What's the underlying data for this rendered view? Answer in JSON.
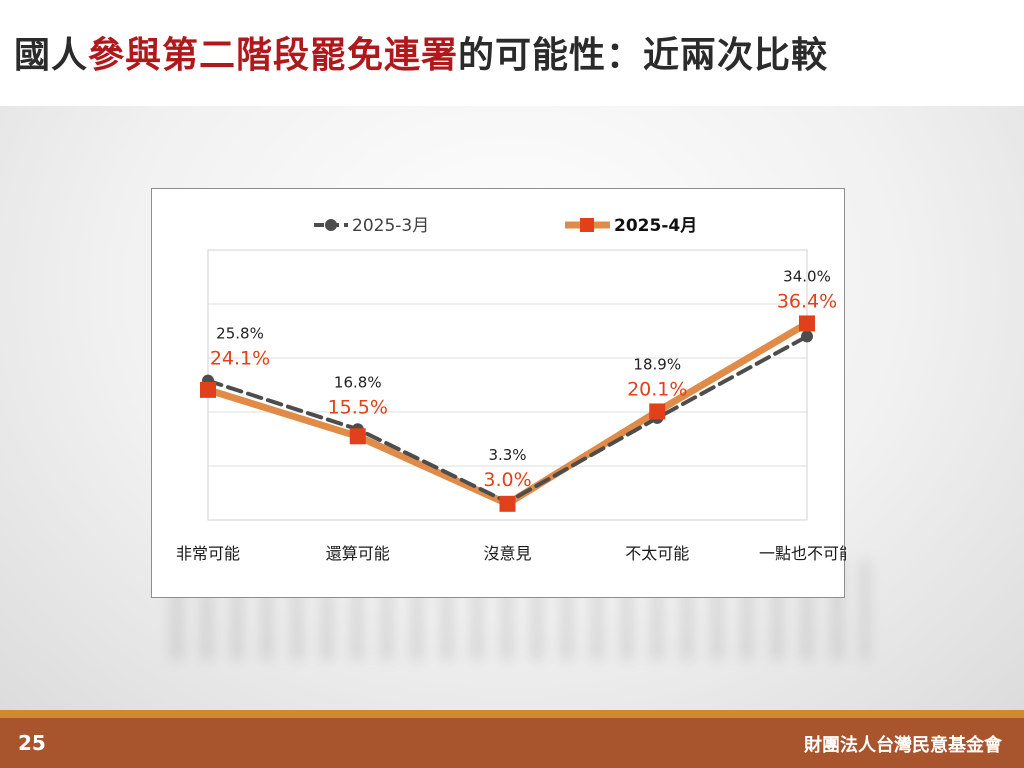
{
  "slide": {
    "title_pre": "國人",
    "title_highlight": "參與第二階段罷免連署",
    "title_post": "的可能性：近兩次比較",
    "page_number": "25",
    "organization": "財團法人台灣民意基金會"
  },
  "colors": {
    "title_text": "#2b2b2b",
    "title_highlight": "#b0181c",
    "series_march_line": "#4d4d4d",
    "series_april_line": "#e08b48",
    "series_april_marker": "#e0401a",
    "series_april_label": "#e0401a",
    "footer_bg": "#a8542c",
    "footer_stripe": "#d08a2a"
  },
  "chart_data": {
    "type": "line",
    "categories": [
      "非常可能",
      "還算可能",
      "沒意見",
      "不太可能",
      "一點也不可能"
    ],
    "series": [
      {
        "name": "2025-3月",
        "values": [
          25.8,
          16.8,
          3.3,
          18.9,
          34.0
        ],
        "labels": [
          "25.8%",
          "16.8%",
          "3.3%",
          "18.9%",
          "34.0%"
        ],
        "style": "dashed"
      },
      {
        "name": "2025-4月",
        "values": [
          24.1,
          15.5,
          3.0,
          20.1,
          36.4
        ],
        "labels": [
          "24.1%",
          "15.5%",
          "3.0%",
          "20.1%",
          "36.4%"
        ],
        "style": "solid"
      }
    ],
    "ylim": [
      0,
      50
    ],
    "grid": true,
    "legend_position": "top"
  }
}
